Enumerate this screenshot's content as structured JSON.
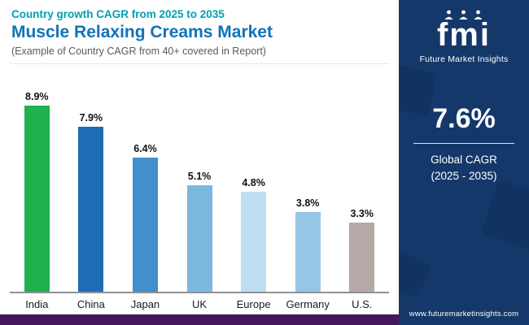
{
  "header": {
    "subtitle": "Country growth CAGR from 2025 to 2035",
    "title": "Muscle Relaxing Creams Market",
    "note": "(Example of Country CAGR from 40+ covered in Report)"
  },
  "chart_data": {
    "type": "bar",
    "title": "Country growth CAGR from 2025 to 2035",
    "categories": [
      "India",
      "China",
      "Japan",
      "UK",
      "Europe",
      "Germany",
      "U.S."
    ],
    "values": [
      8.9,
      7.9,
      6.4,
      5.1,
      4.8,
      3.8,
      3.3
    ],
    "data_labels": [
      "8.9%",
      "7.9%",
      "6.4%",
      "5.1%",
      "4.8%",
      "3.8%",
      "3.3%"
    ],
    "bar_colors": [
      "#1fb14d",
      "#1e6cb4",
      "#418fcc",
      "#7cb7e0",
      "#bedff2",
      "#96c6e6",
      "#b5a8a6"
    ],
    "xlabel": "",
    "ylabel": "",
    "ylim": [
      0,
      9.8
    ],
    "grid": false,
    "legend": false
  },
  "panel": {
    "logo": "fmi",
    "brand": "Future Market Insights",
    "global_cagr_value": "7.6%",
    "global_cagr_label": "Global CAGR",
    "global_cagr_period": "(2025 - 2035)",
    "website": "www.futuremarketinsights.com"
  },
  "colors": {
    "subtitle_teal": "#00a0b0",
    "title_blue": "#1073b9",
    "note_gray": "#5a5a5a",
    "panel_navy": "#14386a",
    "footer_purple": "#45175e"
  }
}
